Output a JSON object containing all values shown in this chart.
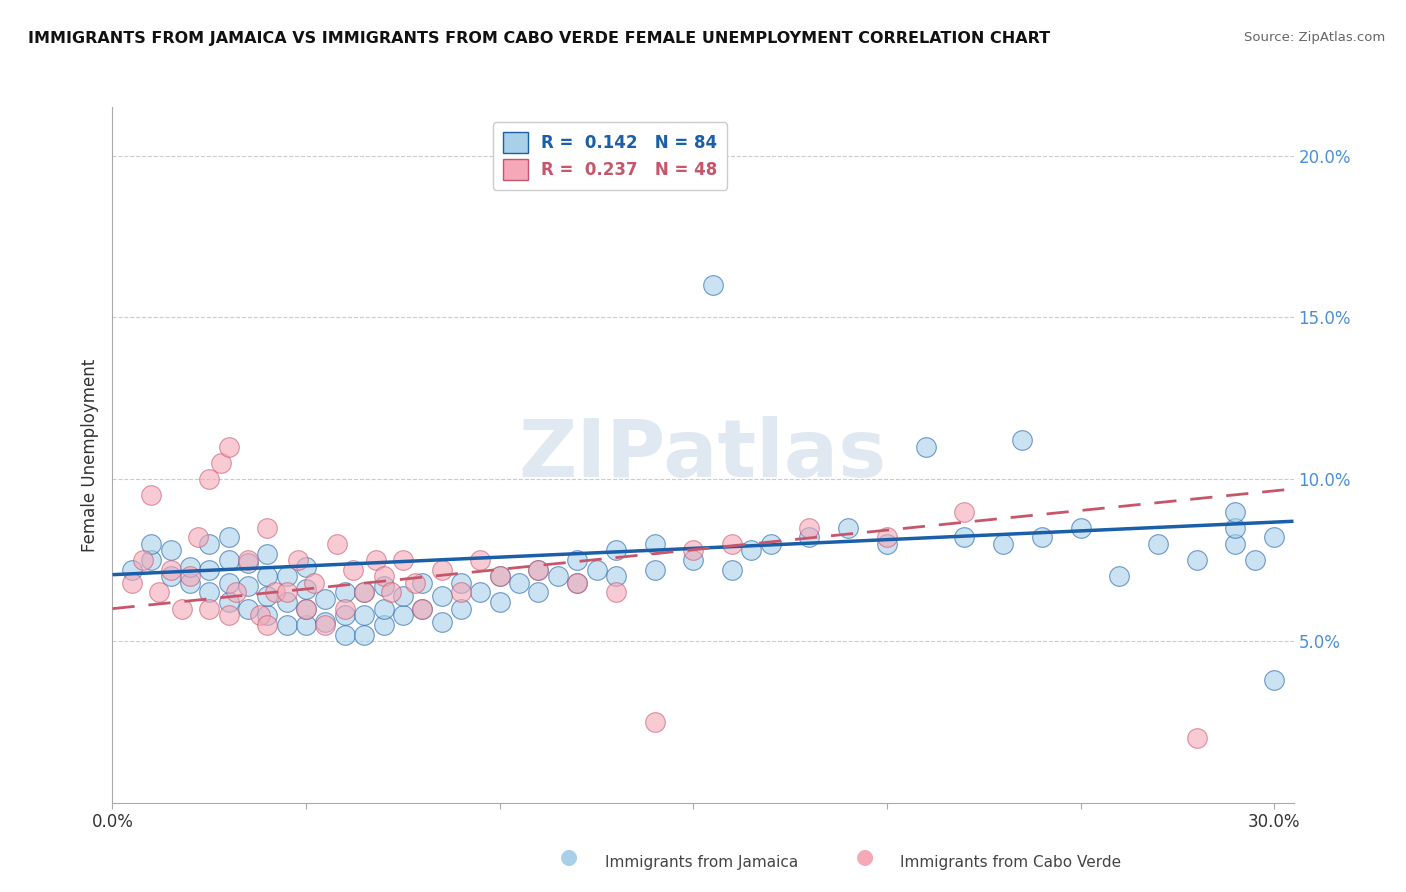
{
  "title": "IMMIGRANTS FROM JAMAICA VS IMMIGRANTS FROM CABO VERDE FEMALE UNEMPLOYMENT CORRELATION CHART",
  "source": "Source: ZipAtlas.com",
  "ylabel": "Female Unemployment",
  "xlim": [
    0.0,
    0.305
  ],
  "ylim": [
    0.0,
    0.215
  ],
  "xtick_positions": [
    0.0,
    0.05,
    0.1,
    0.15,
    0.2,
    0.25,
    0.3
  ],
  "xtick_labels": [
    "0.0%",
    "",
    "",
    "",
    "",
    "",
    "30.0%"
  ],
  "ytick_positions": [
    0.0,
    0.05,
    0.1,
    0.15,
    0.2
  ],
  "ytick_labels_right": [
    "",
    "5.0%",
    "10.0%",
    "15.0%",
    "20.0%"
  ],
  "legend_jamaica_r": "R = ",
  "legend_jamaica_r_val": "0.142",
  "legend_jamaica_n": "  N = ",
  "legend_jamaica_n_val": "84",
  "legend_caboverde_r_val": "0.237",
  "legend_caboverde_n_val": "48",
  "jamaica_color": "#a8d0e8",
  "caboverde_color": "#f4a8b8",
  "line_jamaica_color": "#1a5fa8",
  "line_caboverde_color": "#c8566b",
  "background_color": "#ffffff",
  "jamaica_scatter_x": [
    0.005,
    0.01,
    0.01,
    0.015,
    0.015,
    0.02,
    0.02,
    0.025,
    0.025,
    0.025,
    0.03,
    0.03,
    0.03,
    0.03,
    0.035,
    0.035,
    0.035,
    0.04,
    0.04,
    0.04,
    0.04,
    0.045,
    0.045,
    0.045,
    0.05,
    0.05,
    0.05,
    0.05,
    0.055,
    0.055,
    0.06,
    0.06,
    0.06,
    0.065,
    0.065,
    0.065,
    0.07,
    0.07,
    0.07,
    0.075,
    0.075,
    0.08,
    0.08,
    0.085,
    0.085,
    0.09,
    0.09,
    0.095,
    0.1,
    0.1,
    0.105,
    0.11,
    0.11,
    0.115,
    0.12,
    0.12,
    0.125,
    0.13,
    0.13,
    0.14,
    0.14,
    0.15,
    0.155,
    0.16,
    0.165,
    0.17,
    0.18,
    0.19,
    0.2,
    0.21,
    0.22,
    0.23,
    0.235,
    0.24,
    0.25,
    0.26,
    0.27,
    0.28,
    0.29,
    0.29,
    0.29,
    0.295,
    0.3,
    0.3
  ],
  "jamaica_scatter_y": [
    0.072,
    0.075,
    0.08,
    0.07,
    0.078,
    0.068,
    0.073,
    0.065,
    0.072,
    0.08,
    0.062,
    0.068,
    0.075,
    0.082,
    0.06,
    0.067,
    0.074,
    0.058,
    0.064,
    0.07,
    0.077,
    0.055,
    0.062,
    0.07,
    0.055,
    0.06,
    0.066,
    0.073,
    0.056,
    0.063,
    0.052,
    0.058,
    0.065,
    0.052,
    0.058,
    0.065,
    0.055,
    0.06,
    0.067,
    0.058,
    0.064,
    0.06,
    0.068,
    0.056,
    0.064,
    0.06,
    0.068,
    0.065,
    0.062,
    0.07,
    0.068,
    0.065,
    0.072,
    0.07,
    0.068,
    0.075,
    0.072,
    0.07,
    0.078,
    0.072,
    0.08,
    0.075,
    0.16,
    0.072,
    0.078,
    0.08,
    0.082,
    0.085,
    0.08,
    0.11,
    0.082,
    0.08,
    0.112,
    0.082,
    0.085,
    0.07,
    0.08,
    0.075,
    0.08,
    0.085,
    0.09,
    0.075,
    0.082,
    0.038
  ],
  "caboverde_scatter_x": [
    0.005,
    0.008,
    0.01,
    0.012,
    0.015,
    0.018,
    0.02,
    0.022,
    0.025,
    0.025,
    0.028,
    0.03,
    0.03,
    0.032,
    0.035,
    0.038,
    0.04,
    0.04,
    0.042,
    0.045,
    0.048,
    0.05,
    0.052,
    0.055,
    0.058,
    0.06,
    0.062,
    0.065,
    0.068,
    0.07,
    0.072,
    0.075,
    0.078,
    0.08,
    0.085,
    0.09,
    0.095,
    0.1,
    0.11,
    0.12,
    0.13,
    0.14,
    0.15,
    0.16,
    0.18,
    0.2,
    0.22,
    0.28
  ],
  "caboverde_scatter_y": [
    0.068,
    0.075,
    0.095,
    0.065,
    0.072,
    0.06,
    0.07,
    0.082,
    0.06,
    0.1,
    0.105,
    0.058,
    0.11,
    0.065,
    0.075,
    0.058,
    0.055,
    0.085,
    0.065,
    0.065,
    0.075,
    0.06,
    0.068,
    0.055,
    0.08,
    0.06,
    0.072,
    0.065,
    0.075,
    0.07,
    0.065,
    0.075,
    0.068,
    0.06,
    0.072,
    0.065,
    0.075,
    0.07,
    0.072,
    0.068,
    0.065,
    0.025,
    0.078,
    0.08,
    0.085,
    0.082,
    0.09,
    0.02
  ],
  "jamaica_trend_x": [
    0.0,
    0.305
  ],
  "jamaica_trend_y": [
    0.0705,
    0.087
  ],
  "caboverde_trend_x": [
    0.0,
    0.305
  ],
  "caboverde_trend_y": [
    0.06,
    0.097
  ]
}
